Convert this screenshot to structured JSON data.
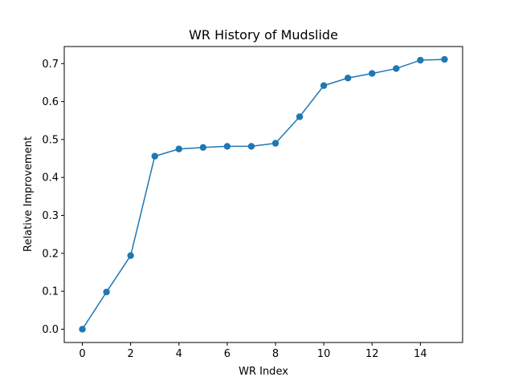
{
  "chart_data": {
    "type": "line",
    "title": "WR History of Mudslide",
    "xlabel": "WR Index",
    "ylabel": "Relative Improvement",
    "xlim": [
      -0.75,
      15.75
    ],
    "ylim": [
      -0.035,
      0.745
    ],
    "xticks": [
      0,
      2,
      4,
      6,
      8,
      10,
      12,
      14
    ],
    "xtick_labels": [
      "0",
      "2",
      "4",
      "6",
      "8",
      "10",
      "12",
      "14"
    ],
    "yticks": [
      0.0,
      0.1,
      0.2,
      0.3,
      0.4,
      0.5,
      0.6,
      0.7
    ],
    "ytick_labels": [
      "0.0",
      "0.1",
      "0.2",
      "0.3",
      "0.4",
      "0.5",
      "0.6",
      "0.7"
    ],
    "grid": false,
    "marker": "circle",
    "color": "#1f77b4",
    "series": [
      {
        "x": [
          0,
          1,
          2,
          3,
          4,
          5,
          6,
          7,
          8,
          9,
          10,
          11,
          12,
          13,
          14,
          15
        ],
        "y": [
          0.0,
          0.098,
          0.194,
          0.456,
          0.475,
          0.479,
          0.482,
          0.482,
          0.49,
          0.56,
          0.642,
          0.662,
          0.674,
          0.687,
          0.709,
          0.711
        ]
      }
    ]
  }
}
